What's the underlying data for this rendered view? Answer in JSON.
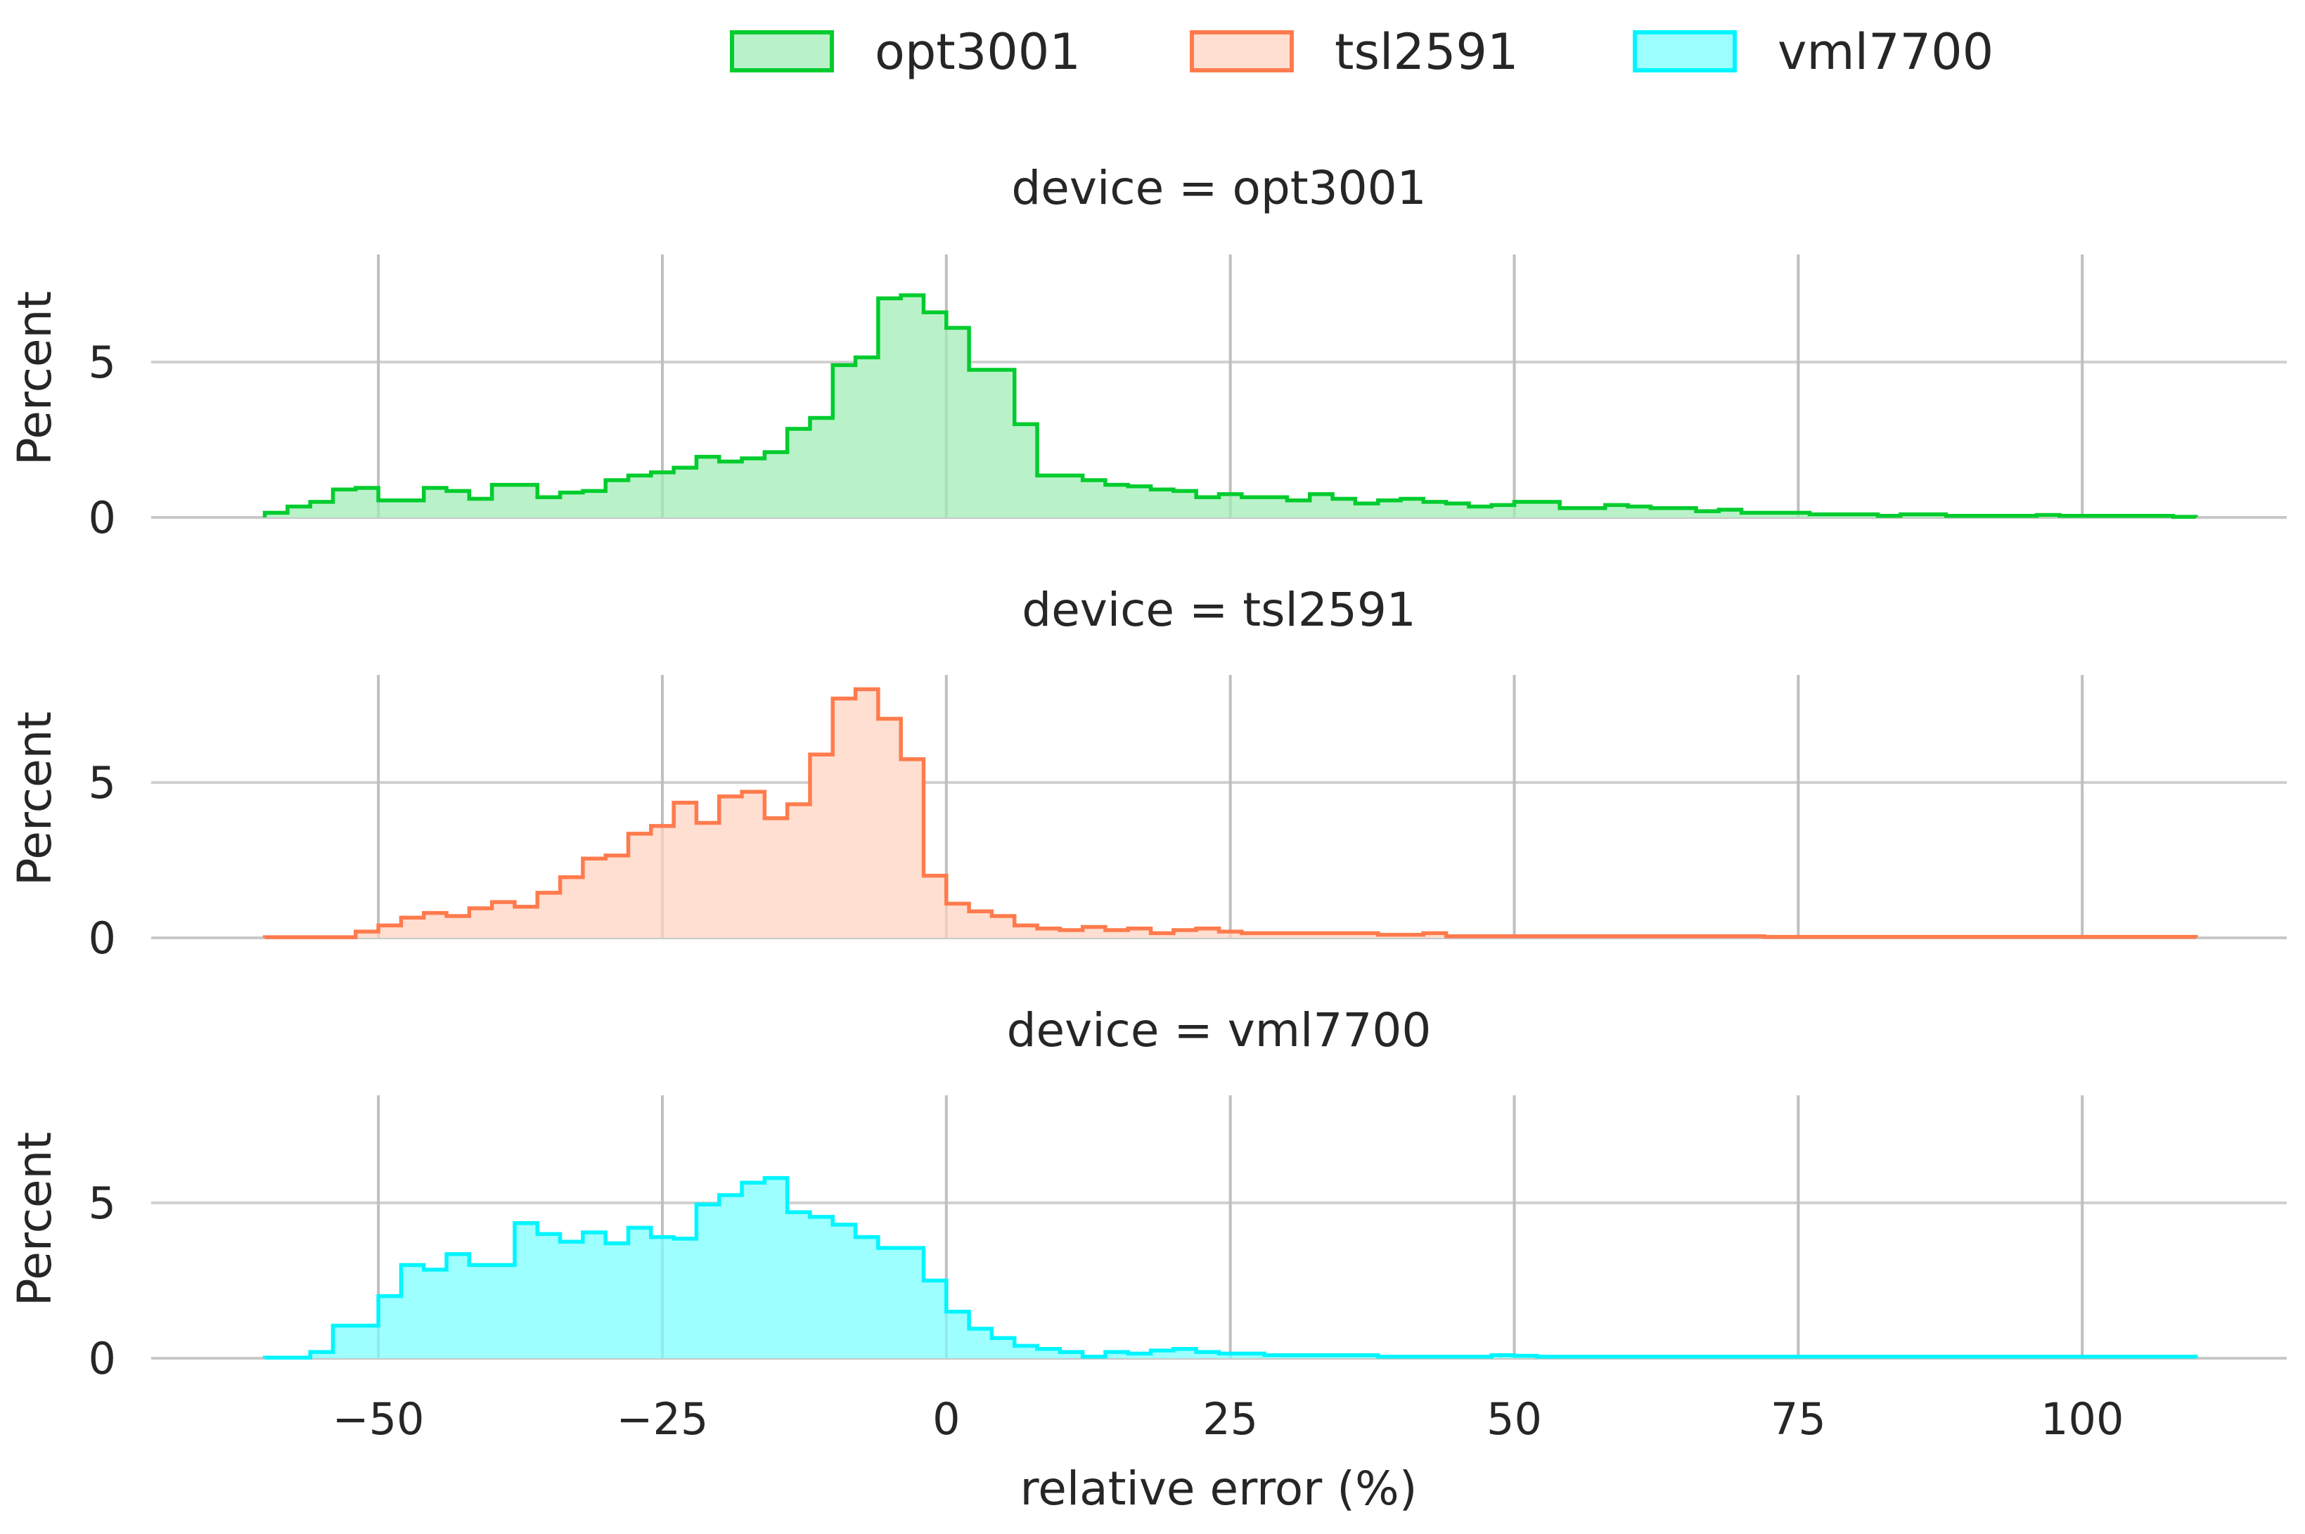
{
  "chart_data": {
    "type": "histogram",
    "xlabel": "relative error (%)",
    "ylabel": "Percent",
    "xlim": [
      -70,
      118
    ],
    "ylim": [
      0,
      8.4
    ],
    "x_ticks": [
      -50,
      -25,
      0,
      25,
      50,
      75,
      100
    ],
    "x_tick_labels": [
      "−50",
      "−25",
      "0",
      "25",
      "50",
      "75",
      "100"
    ],
    "y_ticks": [
      0,
      5
    ],
    "y_tick_labels": [
      "0",
      "5"
    ],
    "grid": true,
    "legend_position": "top-center",
    "legend": [
      "opt3001",
      "tsl2591",
      "vml7700"
    ],
    "bin_start": -60,
    "bin_width": 2,
    "series": [
      {
        "name": "opt3001",
        "title": "device = opt3001",
        "color": "#00cc2e",
        "fill": "#b9f2c9",
        "values": [
          0.15,
          0.35,
          0.5,
          0.9,
          0.95,
          0.55,
          0.55,
          0.95,
          0.85,
          0.6,
          1.05,
          1.05,
          0.65,
          0.8,
          0.85,
          1.2,
          1.35,
          1.45,
          1.6,
          1.95,
          1.8,
          1.9,
          2.1,
          2.85,
          3.2,
          4.9,
          5.15,
          7.05,
          7.15,
          6.6,
          6.1,
          4.75,
          4.75,
          3.0,
          1.35,
          1.35,
          1.2,
          1.05,
          1.0,
          0.9,
          0.85,
          0.65,
          0.75,
          0.65,
          0.65,
          0.55,
          0.75,
          0.6,
          0.45,
          0.55,
          0.6,
          0.5,
          0.45,
          0.35,
          0.4,
          0.5,
          0.5,
          0.3,
          0.3,
          0.4,
          0.35,
          0.3,
          0.3,
          0.2,
          0.25,
          0.15,
          0.15,
          0.15,
          0.1,
          0.1,
          0.1,
          0.05,
          0.1,
          0.1,
          0.05,
          0.05,
          0.05,
          0.05,
          0.08,
          0.05,
          0.05,
          0.05,
          0.05,
          0.05,
          0.02
        ]
      },
      {
        "name": "tsl2591",
        "title": "device = tsl2591",
        "color": "#ff7b4d",
        "fill": "#ffdfd1",
        "values": [
          0.02,
          0.02,
          0.02,
          0.02,
          0.2,
          0.4,
          0.65,
          0.8,
          0.7,
          0.95,
          1.15,
          1.0,
          1.45,
          1.95,
          2.55,
          2.65,
          3.35,
          3.6,
          4.35,
          3.7,
          4.55,
          4.7,
          3.85,
          4.3,
          5.9,
          7.7,
          8.0,
          7.05,
          5.75,
          2.0,
          1.1,
          0.85,
          0.7,
          0.4,
          0.3,
          0.25,
          0.35,
          0.25,
          0.3,
          0.15,
          0.25,
          0.3,
          0.2,
          0.15,
          0.15,
          0.15,
          0.15,
          0.15,
          0.15,
          0.1,
          0.1,
          0.15,
          0.05,
          0.05,
          0.05,
          0.05,
          0.05,
          0.05,
          0.05,
          0.05,
          0.05,
          0.05,
          0.05,
          0.05,
          0.05,
          0.05,
          0.03,
          0.03,
          0.03,
          0.03,
          0.03,
          0.03,
          0.03,
          0.03,
          0.03,
          0.03,
          0.03,
          0.03,
          0.03,
          0.03,
          0.03,
          0.03,
          0.03,
          0.03,
          0.03
        ]
      },
      {
        "name": "vml7700",
        "title": "device = vml7700",
        "color": "#00f5ff",
        "fill": "#9effff",
        "values": [
          0.02,
          0.02,
          0.2,
          1.05,
          1.05,
          2.0,
          3.0,
          2.85,
          3.35,
          3.0,
          3.0,
          4.35,
          4.0,
          3.75,
          4.05,
          3.7,
          4.2,
          3.9,
          3.85,
          4.95,
          5.25,
          5.65,
          5.8,
          4.7,
          4.55,
          4.3,
          3.9,
          3.55,
          3.55,
          2.5,
          1.5,
          0.95,
          0.65,
          0.4,
          0.3,
          0.2,
          0.05,
          0.2,
          0.15,
          0.25,
          0.3,
          0.2,
          0.15,
          0.15,
          0.1,
          0.1,
          0.1,
          0.1,
          0.1,
          0.05,
          0.05,
          0.05,
          0.05,
          0.05,
          0.1,
          0.08,
          0.05,
          0.05,
          0.05,
          0.05,
          0.05,
          0.05,
          0.05,
          0.05,
          0.05,
          0.05,
          0.05,
          0.05,
          0.05,
          0.05,
          0.05,
          0.05,
          0.05,
          0.05,
          0.05,
          0.05,
          0.05,
          0.05,
          0.05,
          0.05,
          0.05,
          0.05,
          0.05,
          0.05,
          0.05
        ]
      }
    ]
  }
}
